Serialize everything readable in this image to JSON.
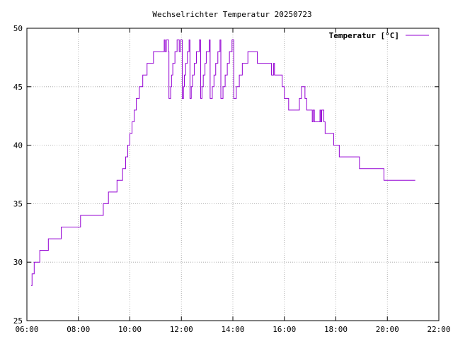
{
  "chart_data": {
    "type": "line",
    "title": "Wechselrichter Temperatur 20250723",
    "xlabel": "",
    "ylabel": "",
    "x_ticks": [
      "06:00",
      "08:00",
      "10:00",
      "12:00",
      "14:00",
      "16:00",
      "18:00",
      "20:00",
      "22:00"
    ],
    "y_ticks": [
      "25",
      "30",
      "35",
      "40",
      "45",
      "50"
    ],
    "xlim": [
      "06:00",
      "22:00"
    ],
    "ylim": [
      25,
      50
    ],
    "grid": true,
    "legend_position": "top-right",
    "series": [
      {
        "name": "Temperatur [°C]",
        "color": "#9400d3",
        "step": true,
        "points": [
          [
            "06:10",
            28
          ],
          [
            "06:12",
            29
          ],
          [
            "06:17",
            30
          ],
          [
            "06:30",
            31
          ],
          [
            "06:50",
            32
          ],
          [
            "07:20",
            33
          ],
          [
            "08:05",
            34
          ],
          [
            "08:58",
            35
          ],
          [
            "09:10",
            36
          ],
          [
            "09:30",
            37
          ],
          [
            "09:43",
            38
          ],
          [
            "09:50",
            39
          ],
          [
            "09:55",
            40
          ],
          [
            "10:00",
            41
          ],
          [
            "10:05",
            42
          ],
          [
            "10:10",
            43
          ],
          [
            "10:15",
            44
          ],
          [
            "10:22",
            45
          ],
          [
            "10:30",
            46
          ],
          [
            "10:40",
            47
          ],
          [
            "10:55",
            48
          ],
          [
            "11:20",
            49
          ],
          [
            "11:22",
            48
          ],
          [
            "11:25",
            49
          ],
          [
            "11:30",
            48
          ],
          [
            "11:31",
            44
          ],
          [
            "11:35",
            45
          ],
          [
            "11:37",
            46
          ],
          [
            "11:40",
            47
          ],
          [
            "11:45",
            48
          ],
          [
            "11:50",
            49
          ],
          [
            "11:55",
            48
          ],
          [
            "11:58",
            49
          ],
          [
            "12:02",
            44
          ],
          [
            "12:05",
            45
          ],
          [
            "12:07",
            46
          ],
          [
            "12:10",
            47
          ],
          [
            "12:14",
            48
          ],
          [
            "12:18",
            49
          ],
          [
            "12:20",
            44
          ],
          [
            "12:23",
            45
          ],
          [
            "12:26",
            46
          ],
          [
            "12:30",
            47
          ],
          [
            "12:35",
            48
          ],
          [
            "12:42",
            49
          ],
          [
            "12:45",
            44
          ],
          [
            "12:48",
            45
          ],
          [
            "12:51",
            46
          ],
          [
            "12:55",
            47
          ],
          [
            "12:58",
            48
          ],
          [
            "13:05",
            49
          ],
          [
            "13:07",
            44
          ],
          [
            "13:12",
            45
          ],
          [
            "13:16",
            46
          ],
          [
            "13:20",
            47
          ],
          [
            "13:25",
            48
          ],
          [
            "13:30",
            49
          ],
          [
            "13:32",
            44
          ],
          [
            "13:37",
            45
          ],
          [
            "13:42",
            46
          ],
          [
            "13:47",
            47
          ],
          [
            "13:52",
            48
          ],
          [
            "13:58",
            49
          ],
          [
            "14:02",
            44
          ],
          [
            "14:08",
            45
          ],
          [
            "14:15",
            46
          ],
          [
            "14:22",
            47
          ],
          [
            "14:35",
            48
          ],
          [
            "14:57",
            47
          ],
          [
            "15:30",
            46
          ],
          [
            "15:35",
            47
          ],
          [
            "15:37",
            46
          ],
          [
            "15:55",
            45
          ],
          [
            "16:00",
            44
          ],
          [
            "16:10",
            43
          ],
          [
            "16:35",
            44
          ],
          [
            "16:40",
            45
          ],
          [
            "16:48",
            44
          ],
          [
            "16:52",
            43
          ],
          [
            "17:05",
            42
          ],
          [
            "17:07",
            43
          ],
          [
            "17:10",
            42
          ],
          [
            "17:23",
            43
          ],
          [
            "17:25",
            42
          ],
          [
            "17:27",
            43
          ],
          [
            "17:32",
            42
          ],
          [
            "17:35",
            41
          ],
          [
            "17:55",
            40
          ],
          [
            "18:08",
            39
          ],
          [
            "18:55",
            38
          ],
          [
            "19:52",
            37
          ],
          [
            "21:05",
            37
          ]
        ]
      }
    ]
  }
}
